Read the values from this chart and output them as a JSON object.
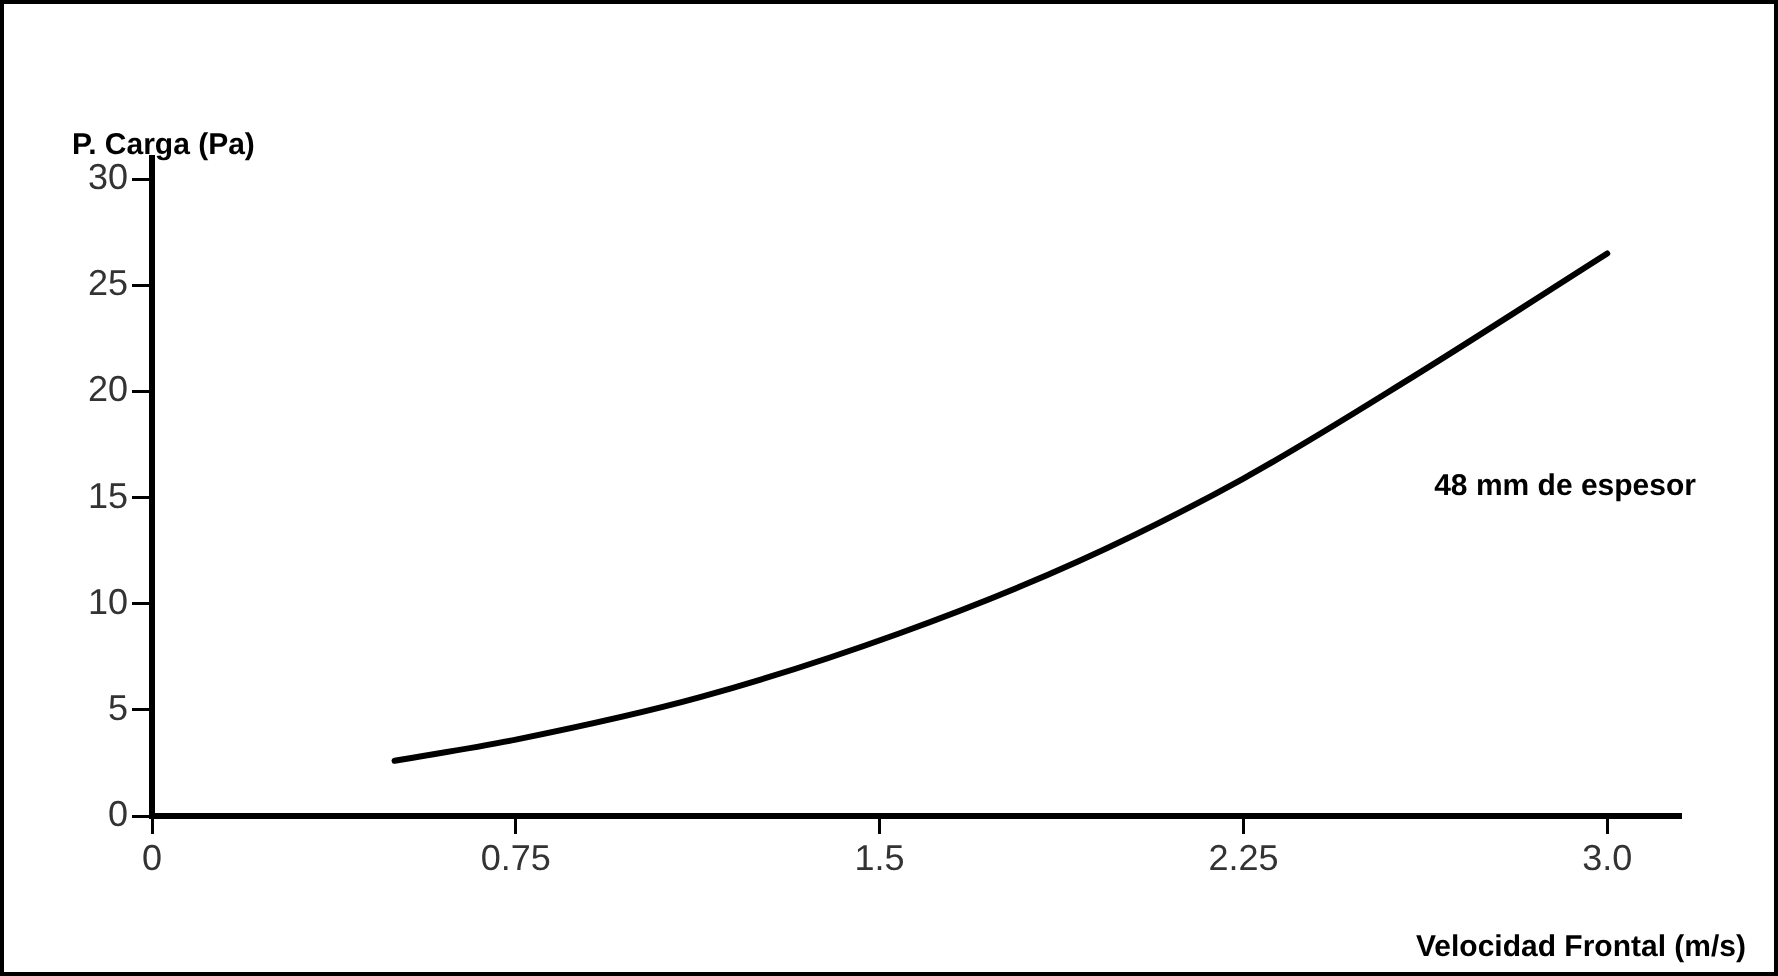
{
  "chart_data": {
    "type": "line",
    "xlabel": "Velocidad Frontal (m/s)",
    "ylabel": "P. Carga (Pa)",
    "x": [
      0.5,
      0.75,
      1.13,
      1.54,
      1.91,
      2.25,
      2.6,
      3.0
    ],
    "series": [
      {
        "name": "48 mm de espesor",
        "color": "#000000",
        "values": [
          2.6,
          3.6,
          5.6,
          8.6,
          12.0,
          15.9,
          20.7,
          26.5
        ]
      }
    ],
    "xlim": [
      0,
      3.15
    ],
    "xticks": [
      0,
      0.75,
      1.5,
      2.25,
      {
        "value": 3.0,
        "label": "3.0"
      }
    ],
    "ylim": [
      0,
      31
    ],
    "yticks": [
      0,
      5,
      10,
      15,
      20,
      25,
      30
    ],
    "grid": false,
    "legend": false,
    "marker": "none",
    "line_style": "solid"
  }
}
